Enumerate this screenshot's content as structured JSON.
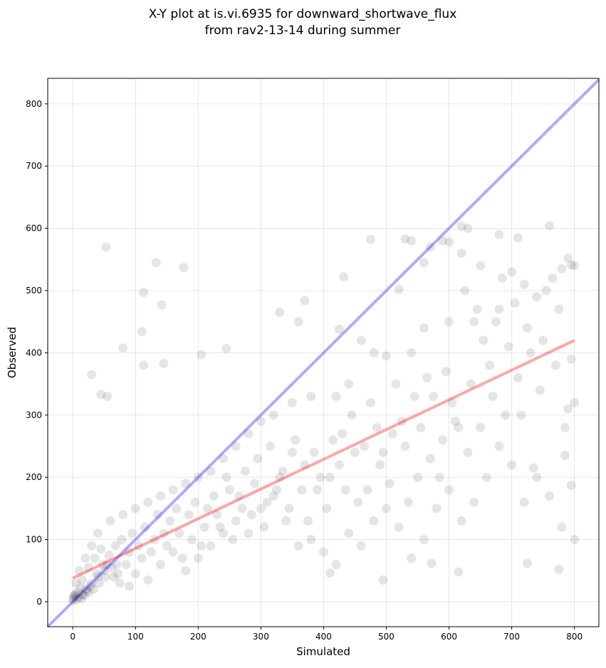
{
  "chart_data": {
    "type": "scatter",
    "title": [
      "X-Y plot at is.vi.6935 for downward_shortwave_flux",
      "from rav2-13-14 during summer"
    ],
    "xlabel": "Simulated",
    "ylabel": "Observed",
    "xlim": [
      -40,
      839
    ],
    "ylim": [
      -40,
      841
    ],
    "xticks": [
      0,
      100,
      200,
      300,
      400,
      500,
      600,
      700,
      800
    ],
    "yticks": [
      0,
      100,
      200,
      300,
      400,
      500,
      600,
      700,
      800
    ],
    "grid": true,
    "point_color": "#000000",
    "one_to_one_line": {
      "color": "#0000ff",
      "from": [
        -40,
        -40
      ],
      "to": [
        839,
        839
      ]
    },
    "fit_line": {
      "color": "#ff0000",
      "from": [
        0,
        38
      ],
      "to": [
        800,
        420
      ]
    },
    "points": [
      [
        53,
        570
      ],
      [
        133,
        545
      ],
      [
        113,
        497
      ],
      [
        142,
        477
      ],
      [
        177,
        537
      ],
      [
        110,
        434
      ],
      [
        30,
        365
      ],
      [
        45,
        333
      ],
      [
        55,
        330
      ],
      [
        80,
        408
      ],
      [
        113,
        380
      ],
      [
        145,
        383
      ],
      [
        205,
        397
      ],
      [
        245,
        407
      ],
      [
        330,
        465
      ],
      [
        370,
        484
      ],
      [
        360,
        450
      ],
      [
        425,
        438
      ],
      [
        432,
        522
      ],
      [
        475,
        582
      ],
      [
        520,
        502
      ],
      [
        530,
        583
      ],
      [
        540,
        580
      ],
      [
        560,
        545
      ],
      [
        570,
        570
      ],
      [
        590,
        580
      ],
      [
        600,
        578
      ],
      [
        620,
        603
      ],
      [
        630,
        600
      ],
      [
        680,
        590
      ],
      [
        710,
        585
      ],
      [
        760,
        604
      ],
      [
        620,
        560
      ],
      [
        650,
        540
      ],
      [
        700,
        530
      ],
      [
        790,
        552
      ],
      [
        795,
        541
      ],
      [
        780,
        535
      ],
      [
        720,
        510
      ],
      [
        740,
        490
      ],
      [
        680,
        470
      ],
      [
        640,
        450
      ],
      [
        600,
        450
      ],
      [
        560,
        440
      ],
      [
        540,
        400
      ],
      [
        500,
        395
      ],
      [
        480,
        400
      ],
      [
        460,
        420
      ],
      [
        440,
        350
      ],
      [
        420,
        330
      ],
      [
        380,
        330
      ],
      [
        350,
        320
      ],
      [
        320,
        300
      ],
      [
        300,
        290
      ],
      [
        280,
        270
      ],
      [
        260,
        250
      ],
      [
        240,
        230
      ],
      [
        220,
        210
      ],
      [
        200,
        200
      ],
      [
        180,
        190
      ],
      [
        160,
        180
      ],
      [
        140,
        170
      ],
      [
        120,
        160
      ],
      [
        100,
        150
      ],
      [
        80,
        140
      ],
      [
        60,
        130
      ],
      [
        40,
        110
      ],
      [
        30,
        90
      ],
      [
        20,
        70
      ],
      [
        10,
        50
      ],
      [
        5,
        30
      ],
      [
        2,
        10
      ],
      [
        0,
        5
      ],
      [
        1,
        2
      ],
      [
        3,
        8
      ],
      [
        8,
        15
      ],
      [
        12,
        22
      ],
      [
        15,
        35
      ],
      [
        25,
        55
      ],
      [
        35,
        70
      ],
      [
        45,
        85
      ],
      [
        55,
        60
      ],
      [
        65,
        40
      ],
      [
        75,
        30
      ],
      [
        90,
        25
      ],
      [
        100,
        45
      ],
      [
        120,
        35
      ],
      [
        140,
        60
      ],
      [
        160,
        80
      ],
      [
        180,
        50
      ],
      [
        200,
        70
      ],
      [
        220,
        90
      ],
      [
        240,
        110
      ],
      [
        260,
        130
      ],
      [
        280,
        110
      ],
      [
        300,
        150
      ],
      [
        320,
        170
      ],
      [
        340,
        130
      ],
      [
        360,
        90
      ],
      [
        380,
        100
      ],
      [
        400,
        80
      ],
      [
        420,
        60
      ],
      [
        440,
        110
      ],
      [
        460,
        90
      ],
      [
        480,
        130
      ],
      [
        500,
        150
      ],
      [
        520,
        120
      ],
      [
        540,
        70
      ],
      [
        560,
        100
      ],
      [
        580,
        150
      ],
      [
        600,
        180
      ],
      [
        620,
        130
      ],
      [
        640,
        160
      ],
      [
        660,
        200
      ],
      [
        680,
        250
      ],
      [
        700,
        220
      ],
      [
        720,
        160
      ],
      [
        740,
        200
      ],
      [
        760,
        170
      ],
      [
        780,
        120
      ],
      [
        800,
        100
      ],
      [
        790,
        310
      ],
      [
        770,
        380
      ],
      [
        750,
        420
      ],
      [
        730,
        400
      ],
      [
        710,
        360
      ],
      [
        690,
        300
      ],
      [
        670,
        330
      ],
      [
        650,
        280
      ],
      [
        630,
        240
      ],
      [
        610,
        290
      ],
      [
        590,
        260
      ],
      [
        570,
        230
      ],
      [
        550,
        200
      ],
      [
        530,
        250
      ],
      [
        510,
        270
      ],
      [
        490,
        220
      ],
      [
        470,
        180
      ],
      [
        450,
        240
      ],
      [
        430,
        270
      ],
      [
        410,
        200
      ],
      [
        390,
        180
      ],
      [
        370,
        220
      ],
      [
        350,
        240
      ],
      [
        330,
        200
      ],
      [
        310,
        160
      ],
      [
        290,
        190
      ],
      [
        270,
        150
      ],
      [
        250,
        180
      ],
      [
        230,
        140
      ],
      [
        210,
        120
      ],
      [
        190,
        100
      ],
      [
        170,
        110
      ],
      [
        150,
        90
      ],
      [
        130,
        100
      ],
      [
        110,
        70
      ],
      [
        90,
        80
      ],
      [
        70,
        60
      ],
      [
        50,
        50
      ],
      [
        40,
        40
      ],
      [
        30,
        30
      ],
      [
        20,
        20
      ],
      [
        18,
        10
      ],
      [
        25,
        15
      ],
      [
        6,
        4
      ],
      [
        4,
        12
      ],
      [
        14,
        5
      ],
      [
        735,
        215
      ],
      [
        572,
        62
      ],
      [
        725,
        62
      ],
      [
        775,
        52
      ],
      [
        495,
        35
      ],
      [
        615,
        48
      ],
      [
        410,
        46
      ],
      [
        785,
        235
      ],
      [
        795,
        187
      ],
      [
        10,
        8
      ],
      [
        15,
        12
      ],
      [
        22,
        18
      ],
      [
        28,
        25
      ],
      [
        33,
        20
      ],
      [
        38,
        45
      ],
      [
        42,
        30
      ],
      [
        48,
        60
      ],
      [
        52,
        40
      ],
      [
        58,
        75
      ],
      [
        62,
        55
      ],
      [
        68,
        90
      ],
      [
        72,
        45
      ],
      [
        78,
        100
      ],
      [
        85,
        60
      ],
      [
        95,
        110
      ],
      [
        105,
        90
      ],
      [
        115,
        120
      ],
      [
        125,
        80
      ],
      [
        135,
        140
      ],
      [
        145,
        110
      ],
      [
        155,
        130
      ],
      [
        165,
        150
      ],
      [
        175,
        70
      ],
      [
        185,
        140
      ],
      [
        195,
        160
      ],
      [
        205,
        90
      ],
      [
        215,
        150
      ],
      [
        225,
        170
      ],
      [
        235,
        120
      ],
      [
        245,
        200
      ],
      [
        255,
        100
      ],
      [
        265,
        170
      ],
      [
        275,
        210
      ],
      [
        285,
        140
      ],
      [
        295,
        230
      ],
      [
        305,
        120
      ],
      [
        315,
        250
      ],
      [
        325,
        180
      ],
      [
        335,
        210
      ],
      [
        345,
        150
      ],
      [
        355,
        260
      ],
      [
        365,
        180
      ],
      [
        375,
        130
      ],
      [
        385,
        240
      ],
      [
        395,
        200
      ],
      [
        405,
        150
      ],
      [
        415,
        260
      ],
      [
        425,
        220
      ],
      [
        435,
        180
      ],
      [
        445,
        300
      ],
      [
        455,
        160
      ],
      [
        465,
        250
      ],
      [
        475,
        320
      ],
      [
        485,
        280
      ],
      [
        495,
        240
      ],
      [
        505,
        190
      ],
      [
        515,
        350
      ],
      [
        525,
        290
      ],
      [
        535,
        160
      ],
      [
        545,
        330
      ],
      [
        555,
        280
      ],
      [
        565,
        360
      ],
      [
        575,
        330
      ],
      [
        585,
        200
      ],
      [
        595,
        370
      ],
      [
        605,
        320
      ],
      [
        615,
        280
      ],
      [
        625,
        500
      ],
      [
        635,
        350
      ],
      [
        645,
        470
      ],
      [
        655,
        420
      ],
      [
        665,
        380
      ],
      [
        675,
        450
      ],
      [
        685,
        520
      ],
      [
        695,
        410
      ],
      [
        705,
        480
      ],
      [
        715,
        300
      ],
      [
        725,
        440
      ],
      [
        745,
        340
      ],
      [
        755,
        500
      ],
      [
        765,
        520
      ],
      [
        775,
        470
      ],
      [
        785,
        280
      ],
      [
        795,
        390
      ],
      [
        800,
        540
      ],
      [
        800,
        320
      ]
    ]
  }
}
